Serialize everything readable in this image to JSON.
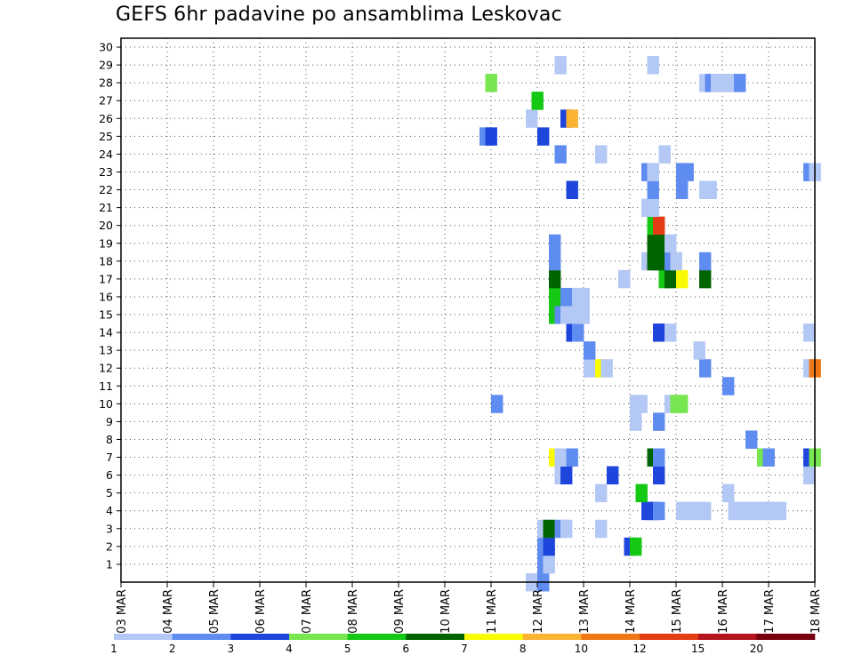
{
  "chart_data": {
    "type": "heatmap",
    "title": "GEFS 6hr padavine po ansamblima Leskovac",
    "xlabel": "",
    "ylabel": "",
    "x_ticks": [
      "03 MAR",
      "04 MAR",
      "05 MAR",
      "06 MAR",
      "07 MAR",
      "08 MAR",
      "09 MAR",
      "10 MAR",
      "11 MAR",
      "12 MAR",
      "13 MAR",
      "14 MAR",
      "15 MAR",
      "16 MAR",
      "17 MAR",
      "18 MAR"
    ],
    "y_ticks": [
      "1",
      "2",
      "3",
      "4",
      "5",
      "6",
      "7",
      "8",
      "9",
      "10",
      "11",
      "12",
      "13",
      "14",
      "15",
      "16",
      "17",
      "18",
      "19",
      "20",
      "21",
      "22",
      "23",
      "24",
      "25",
      "26",
      "27",
      "28",
      "29",
      "30"
    ],
    "x_unit": "days since 03 MAR",
    "y_range": [
      0,
      30
    ],
    "grid": true,
    "legend": {
      "placement": "bottom",
      "labels": [
        "1",
        "2",
        "3",
        "4",
        "5",
        "6",
        "7",
        "8",
        "10",
        "12",
        "15",
        "20"
      ],
      "colors": [
        "#b4c8f5",
        "#5f8cf0",
        "#1e46dc",
        "#78e650",
        "#14c814",
        "#006400",
        "#fafa00",
        "#fab432",
        "#f07814",
        "#e63c14",
        "#b4141e",
        "#78000f"
      ]
    },
    "cells": [
      [
        0,
        8.75,
        1
      ],
      [
        0,
        9.0,
        2
      ],
      [
        1,
        9.0,
        2
      ],
      [
        1,
        9.125,
        1
      ],
      [
        2,
        9.0,
        2
      ],
      [
        2,
        9.125,
        3
      ],
      [
        2,
        10.875,
        3
      ],
      [
        2,
        11.0,
        5
      ],
      [
        3,
        9.0,
        1
      ],
      [
        3,
        9.125,
        6
      ],
      [
        3,
        9.375,
        2
      ],
      [
        3,
        9.5,
        1
      ],
      [
        3,
        10.25,
        1
      ],
      [
        4,
        11.25,
        3
      ],
      [
        4,
        11.375,
        3
      ],
      [
        4,
        11.5,
        2
      ],
      [
        4,
        12.0,
        1
      ],
      [
        4,
        12.125,
        1
      ],
      [
        4,
        12.25,
        1
      ],
      [
        4,
        12.375,
        1
      ],
      [
        4,
        12.5,
        1
      ],
      [
        4,
        13.125,
        1
      ],
      [
        4,
        13.25,
        1
      ],
      [
        4,
        13.375,
        1
      ],
      [
        4,
        13.5,
        1
      ],
      [
        4,
        13.625,
        1
      ],
      [
        4,
        13.75,
        1
      ],
      [
        4,
        13.875,
        1
      ],
      [
        4,
        14.0,
        1
      ],
      [
        4,
        14.125,
        1
      ],
      [
        5,
        10.25,
        1
      ],
      [
        5,
        11.125,
        5
      ],
      [
        5,
        13.0,
        1
      ],
      [
        6,
        9.375,
        1
      ],
      [
        6,
        9.5,
        3
      ],
      [
        6,
        10.5,
        3
      ],
      [
        6,
        11.5,
        3
      ],
      [
        6,
        14.75,
        1
      ],
      [
        7,
        9.25,
        7
      ],
      [
        7,
        9.375,
        1
      ],
      [
        7,
        9.5,
        1
      ],
      [
        7,
        9.625,
        2
      ],
      [
        7,
        11.375,
        6
      ],
      [
        7,
        11.5,
        2
      ],
      [
        7,
        13.75,
        4
      ],
      [
        7,
        13.875,
        2
      ],
      [
        7,
        14.75,
        3
      ],
      [
        7,
        14.875,
        4
      ],
      [
        8,
        13.5,
        2
      ],
      [
        9,
        11.0,
        1
      ],
      [
        9,
        11.5,
        2
      ],
      [
        10,
        8.0,
        2
      ],
      [
        10,
        11.0,
        1
      ],
      [
        10,
        11.125,
        1
      ],
      [
        10,
        11.75,
        1
      ],
      [
        10,
        11.875,
        4
      ],
      [
        10,
        12.0,
        4
      ],
      [
        11,
        13.0,
        2
      ],
      [
        12,
        10.0,
        1
      ],
      [
        12,
        10.25,
        7
      ],
      [
        12,
        10.375,
        1
      ],
      [
        12,
        12.5,
        2
      ],
      [
        12,
        14.75,
        1
      ],
      [
        12,
        14.875,
        9
      ],
      [
        13,
        10.0,
        2
      ],
      [
        13,
        12.375,
        1
      ],
      [
        14,
        9.625,
        3
      ],
      [
        14,
        9.75,
        2
      ],
      [
        14,
        11.5,
        3
      ],
      [
        14,
        11.75,
        1
      ],
      [
        14,
        14.75,
        1
      ],
      [
        15,
        9.25,
        5
      ],
      [
        15,
        9.375,
        2
      ],
      [
        15,
        9.5,
        1
      ],
      [
        15,
        9.75,
        1
      ],
      [
        15,
        9.875,
        1
      ],
      [
        16,
        9.25,
        5
      ],
      [
        16,
        9.5,
        2
      ],
      [
        16,
        9.75,
        1
      ],
      [
        16,
        9.875,
        1
      ],
      [
        17,
        9.25,
        6
      ],
      [
        17,
        10.75,
        1
      ],
      [
        17,
        11.625,
        5
      ],
      [
        17,
        11.75,
        6
      ],
      [
        17,
        12.0,
        7
      ],
      [
        17,
        12.5,
        6
      ],
      [
        18,
        9.25,
        2
      ],
      [
        18,
        11.25,
        1
      ],
      [
        18,
        11.375,
        6
      ],
      [
        18,
        11.5,
        6
      ],
      [
        18,
        11.625,
        6
      ],
      [
        18,
        11.75,
        2
      ],
      [
        18,
        11.875,
        1
      ],
      [
        18,
        12.5,
        2
      ],
      [
        19,
        9.25,
        2
      ],
      [
        19,
        11.375,
        6
      ],
      [
        19,
        11.5,
        6
      ],
      [
        19,
        11.75,
        1
      ],
      [
        20,
        11.375,
        5
      ],
      [
        20,
        11.5,
        10
      ],
      [
        21,
        11.25,
        1
      ],
      [
        21,
        11.375,
        1
      ],
      [
        22,
        9.625,
        3
      ],
      [
        22,
        11.375,
        2
      ],
      [
        22,
        12.0,
        2
      ],
      [
        22,
        12.5,
        1
      ],
      [
        22,
        12.625,
        1
      ],
      [
        23,
        11.25,
        2
      ],
      [
        23,
        11.375,
        1
      ],
      [
        23,
        12.0,
        2
      ],
      [
        23,
        12.125,
        2
      ],
      [
        23,
        14.75,
        2
      ],
      [
        23,
        14.875,
        1
      ],
      [
        24,
        9.375,
        2
      ],
      [
        24,
        10.25,
        1
      ],
      [
        24,
        11.625,
        1
      ],
      [
        25,
        7.75,
        2
      ],
      [
        25,
        7.875,
        3
      ],
      [
        25,
        9.0,
        3
      ],
      [
        26,
        8.75,
        1
      ],
      [
        26,
        9.5,
        3
      ],
      [
        26,
        9.625,
        8
      ],
      [
        27,
        8.875,
        5
      ],
      [
        28,
        7.875,
        4
      ],
      [
        28,
        12.5,
        1
      ],
      [
        28,
        12.625,
        2
      ],
      [
        28,
        12.75,
        1
      ],
      [
        28,
        12.875,
        1
      ],
      [
        28,
        13.0,
        1
      ],
      [
        28,
        13.125,
        1
      ],
      [
        28,
        13.25,
        2
      ],
      [
        29,
        9.375,
        1
      ],
      [
        29,
        11.375,
        1
      ]
    ]
  }
}
